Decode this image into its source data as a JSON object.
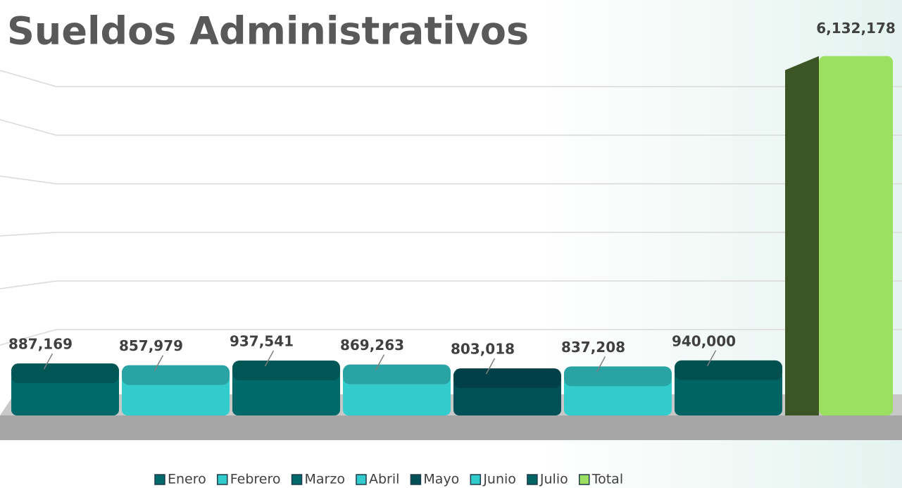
{
  "chart_data": {
    "type": "bar",
    "title": "Sueldos Administrativos",
    "categories": [
      "Enero",
      "Febrero",
      "Marzo",
      "Abril",
      "Mayo",
      "Junio",
      "Julio",
      "Total"
    ],
    "values": [
      887169,
      857979,
      937541,
      869263,
      803018,
      837208,
      940000,
      6132178
    ],
    "value_labels": [
      "887,169",
      "857,979",
      "937,541",
      "869,263",
      "803,018",
      "837,208",
      "940,000",
      "6,132,178"
    ],
    "colors": [
      "#006a6a",
      "#33cccc",
      "#006a6a",
      "#33cccc",
      "#005058",
      "#33cccc",
      "#006464",
      "#9be060"
    ],
    "ylim": [
      0,
      6500000
    ]
  }
}
